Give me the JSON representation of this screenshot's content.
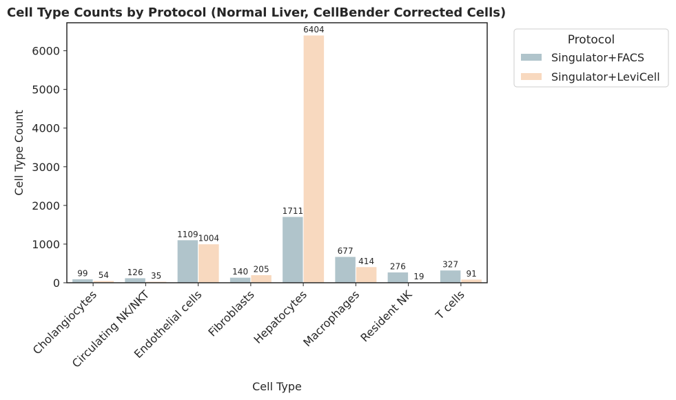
{
  "chart_data": {
    "type": "bar",
    "title": "Cell Type Counts by Protocol (Normal Liver, CellBender Corrected Cells)",
    "xlabel": "Cell Type",
    "ylabel": "Cell Type Count",
    "categories": [
      "Cholangiocytes",
      "Circulating NK/NKT",
      "Endothelial cells",
      "Fibroblasts",
      "Hepatocytes",
      "Macrophages",
      "Resident NK",
      "T cells"
    ],
    "series": [
      {
        "name": "Singulator+FACS",
        "color": "#b0c4cb",
        "values": [
          99,
          126,
          1109,
          140,
          1711,
          677,
          276,
          327
        ]
      },
      {
        "name": "Singulator+LeviCell",
        "color": "#f8d9bf",
        "values": [
          54,
          35,
          1004,
          205,
          6404,
          414,
          19,
          91
        ]
      }
    ],
    "ylim": [
      0,
      6724
    ],
    "yticks": [
      0,
      1000,
      2000,
      3000,
      4000,
      5000,
      6000
    ],
    "legend": {
      "title": "Protocol",
      "placement": "outside-right-top"
    },
    "grid": false
  }
}
